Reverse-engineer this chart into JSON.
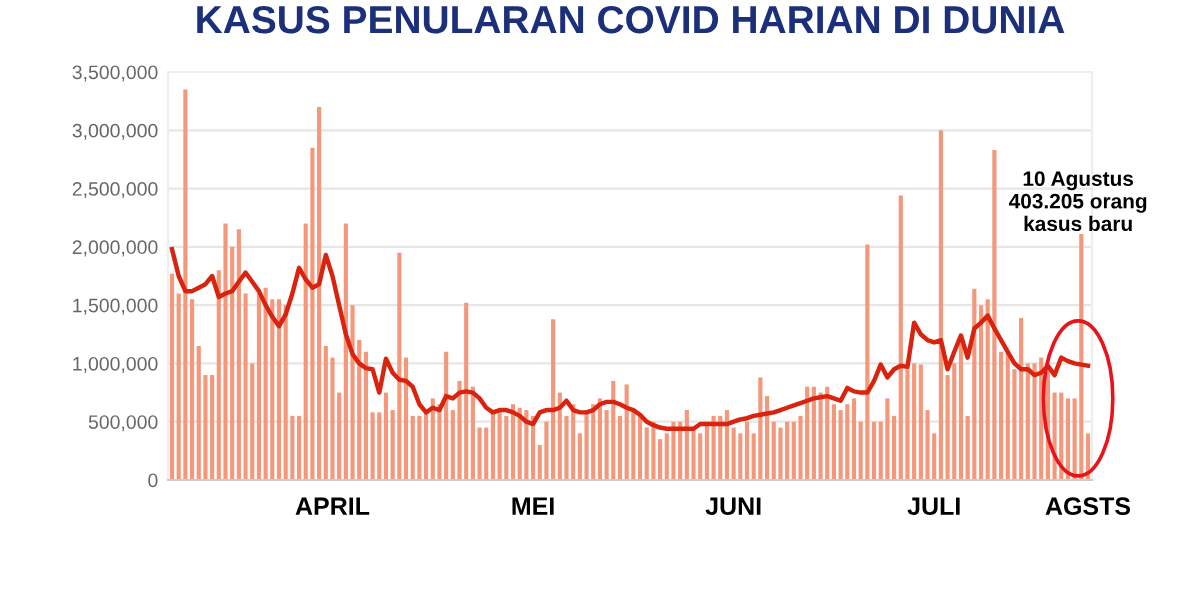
{
  "chart_data": {
    "type": "bar",
    "title": "KASUS PENULARAN COVID HARIAN DI DUNIA",
    "categories": [
      null,
      null,
      null,
      null,
      null,
      null,
      null,
      null,
      null,
      null,
      null,
      null,
      null,
      null,
      null,
      null,
      null,
      null,
      null,
      null,
      null,
      null,
      null,
      null,
      "APRIL",
      null,
      null,
      null,
      null,
      null,
      null,
      null,
      null,
      null,
      null,
      null,
      null,
      null,
      null,
      null,
      null,
      null,
      null,
      null,
      null,
      null,
      null,
      null,
      null,
      null,
      null,
      null,
      null,
      null,
      "MEI",
      null,
      null,
      null,
      null,
      null,
      null,
      null,
      null,
      null,
      null,
      null,
      null,
      null,
      null,
      null,
      null,
      null,
      null,
      null,
      null,
      null,
      null,
      null,
      null,
      null,
      null,
      null,
      null,
      null,
      "JUNI",
      null,
      null,
      null,
      null,
      null,
      null,
      null,
      null,
      null,
      null,
      null,
      null,
      null,
      null,
      null,
      null,
      null,
      null,
      null,
      null,
      null,
      null,
      null,
      null,
      null,
      null,
      null,
      null,
      null,
      "JULI",
      null,
      null,
      null,
      null,
      null,
      null,
      null,
      null,
      null,
      null,
      null,
      null,
      null,
      null,
      null,
      null,
      null,
      null,
      null,
      null,
      null,
      null,
      "AGSTS"
    ],
    "series": [
      {
        "color": "#f4977b",
        "values": [
          1770000,
          1600000,
          3350000,
          1550000,
          1150000,
          900000,
          900000,
          1800000,
          2200000,
          2000000,
          2150000,
          1600000,
          1000000,
          1600000,
          1650000,
          1550000,
          1550000,
          1500000,
          550000,
          550000,
          2200000,
          2850000,
          3200000,
          1150000,
          1050000,
          750000,
          2200000,
          1500000,
          1200000,
          1100000,
          580000,
          580000,
          750000,
          600000,
          1950000,
          1050000,
          550000,
          550000,
          600000,
          700000,
          650000,
          1100000,
          600000,
          850000,
          1520000,
          800000,
          450000,
          450000,
          600000,
          600000,
          550000,
          650000,
          620000,
          600000,
          550000,
          300000,
          500000,
          1380000,
          750000,
          550000,
          650000,
          400000,
          600000,
          650000,
          700000,
          600000,
          850000,
          550000,
          820000,
          600000,
          550000,
          450000,
          500000,
          350000,
          400000,
          500000,
          500000,
          600000,
          450000,
          400000,
          500000,
          550000,
          550000,
          600000,
          450000,
          400000,
          500000,
          400000,
          880000,
          720000,
          500000,
          450000,
          500000,
          500000,
          550000,
          800000,
          800000,
          750000,
          800000,
          650000,
          600000,
          650000,
          700000,
          500000,
          2020000,
          500000,
          500000,
          700000,
          550000,
          2440000,
          950000,
          1000000,
          990000,
          600000,
          400000,
          3000000,
          900000,
          1000000,
          1200000,
          550000,
          1640000,
          1500000,
          1550000,
          2830000,
          1100000,
          1100000,
          950000,
          1390000,
          1000000,
          1000000,
          1050000,
          950000,
          750000,
          750000,
          700000,
          700000,
          2110000,
          400000
        ]
      },
      {
        "type": "line",
        "color": "#d9230f",
        "values": [
          1980000,
          1750000,
          1620000,
          1620000,
          1650000,
          1680000,
          1750000,
          1570000,
          1600000,
          1620000,
          1700000,
          1780000,
          1700000,
          1620000,
          1500000,
          1400000,
          1320000,
          1420000,
          1600000,
          1820000,
          1720000,
          1650000,
          1680000,
          1930000,
          1750000,
          1500000,
          1250000,
          1080000,
          1000000,
          960000,
          950000,
          750000,
          1040000,
          920000,
          860000,
          850000,
          800000,
          650000,
          580000,
          620000,
          600000,
          720000,
          700000,
          750000,
          760000,
          750000,
          700000,
          620000,
          580000,
          600000,
          600000,
          580000,
          550000,
          500000,
          480000,
          580000,
          600000,
          600000,
          620000,
          680000,
          600000,
          580000,
          580000,
          600000,
          650000,
          670000,
          670000,
          650000,
          620000,
          600000,
          560000,
          500000,
          470000,
          450000,
          440000,
          440000,
          440000,
          440000,
          440000,
          480000,
          480000,
          480000,
          480000,
          480000,
          500000,
          520000,
          530000,
          550000,
          560000,
          570000,
          580000,
          600000,
          620000,
          640000,
          660000,
          680000,
          700000,
          710000,
          720000,
          700000,
          680000,
          790000,
          760000,
          750000,
          750000,
          850000,
          990000,
          880000,
          950000,
          980000,
          970000,
          1350000,
          1250000,
          1200000,
          1180000,
          1200000,
          950000,
          1100000,
          1240000,
          1050000,
          1300000,
          1350000,
          1410000,
          1300000,
          1200000,
          1100000,
          1000000,
          950000,
          950000,
          900000,
          920000,
          980000,
          900000,
          1050000,
          1020000,
          1000000,
          990000,
          980000
        ]
      }
    ],
    "ylim": [
      0,
      3500000
    ],
    "yticks": [
      {
        "value": 0,
        "label": "0"
      },
      {
        "value": 500000,
        "label": "500,000"
      },
      {
        "value": 1000000,
        "label": "1,000,000"
      },
      {
        "value": 1500000,
        "label": "1,500,000"
      },
      {
        "value": 2000000,
        "label": "2,000,000"
      },
      {
        "value": 2500000,
        "label": "2,500,000"
      },
      {
        "value": 3000000,
        "label": "3,000,000"
      },
      {
        "value": 3500000,
        "label": "3,500,000"
      }
    ],
    "grid": "y",
    "annotations": [
      "10 Agustus\n403.205 orang\nkasus baru"
    ]
  }
}
